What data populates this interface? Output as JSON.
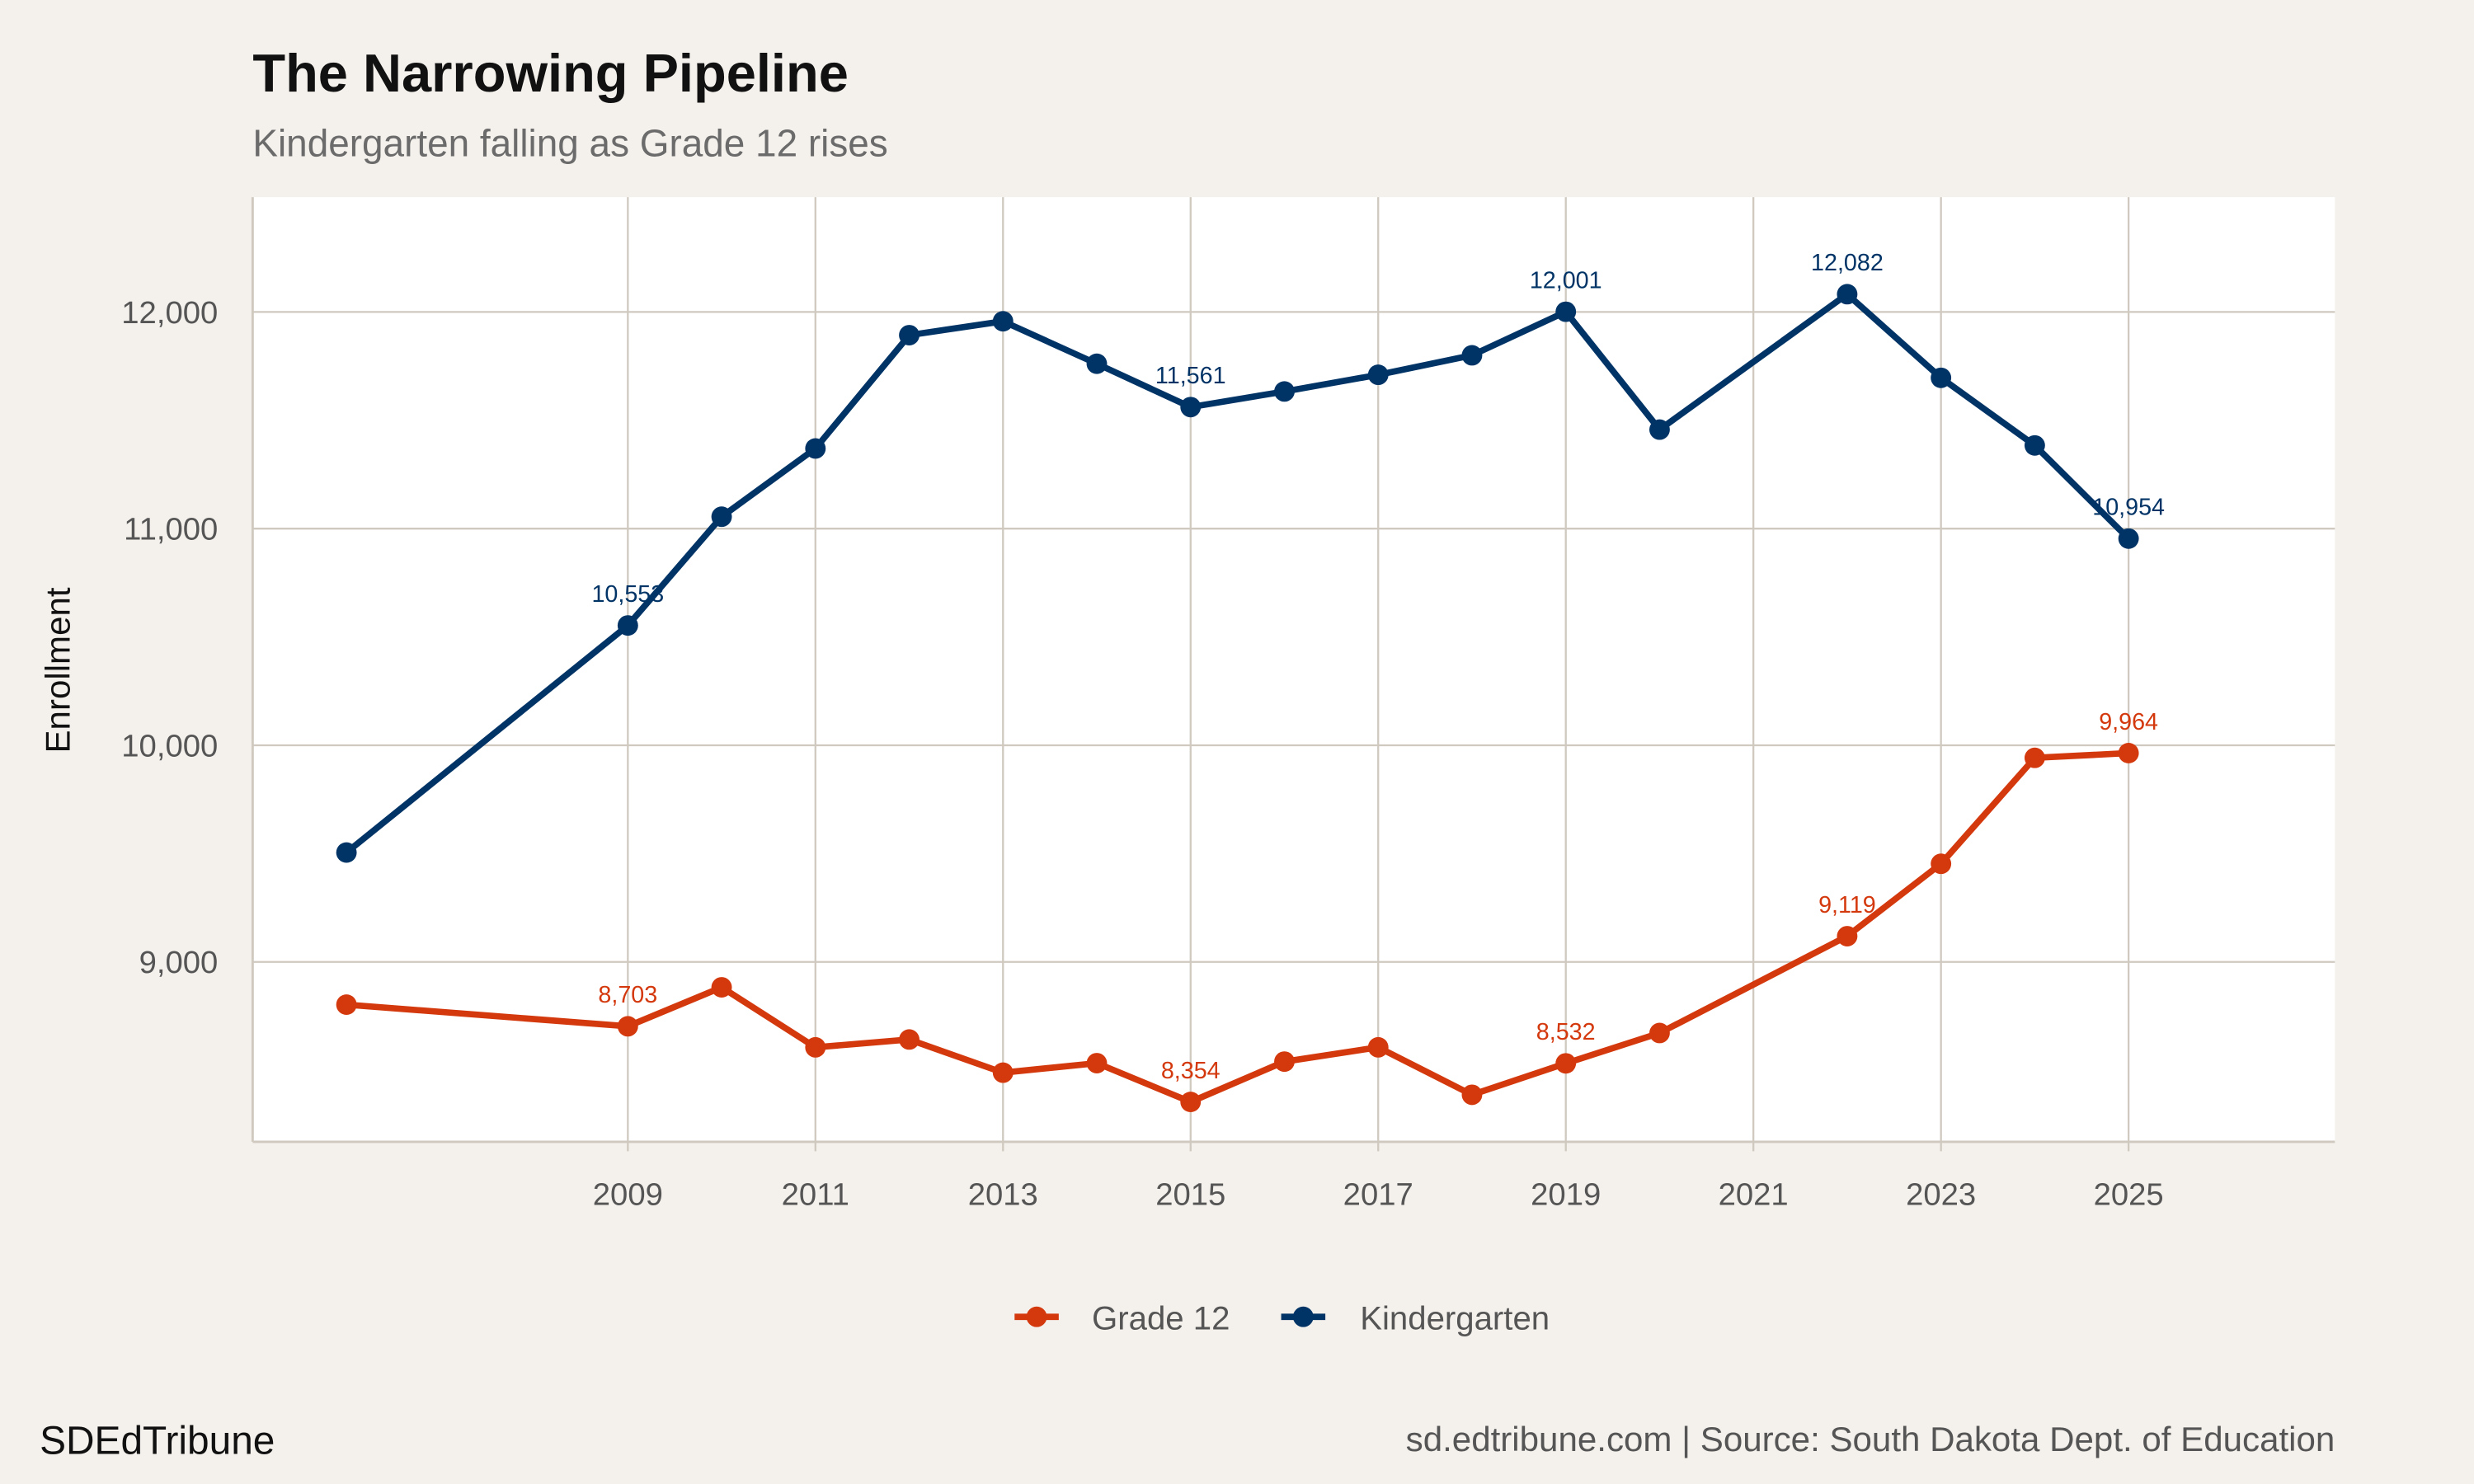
{
  "chart_data": {
    "type": "line",
    "title": "The Narrowing Pipeline",
    "subtitle": "Kindergarten falling as Grade 12 rises",
    "xlabel": "",
    "ylabel": "Enrollment",
    "xlim": [
      2005,
      2027.2
    ],
    "ylim": [
      8170,
      12530
    ],
    "x_ticks": [
      2009,
      2011,
      2013,
      2015,
      2017,
      2019,
      2021,
      2023,
      2025
    ],
    "y_ticks": [
      9000,
      10000,
      11000,
      12000
    ],
    "y_tick_labels": [
      "9,000",
      "10,000",
      "11,000",
      "12,000"
    ],
    "grid": true,
    "legend_position": "bottom",
    "x": [
      2006,
      2009,
      2010,
      2011,
      2012,
      2013,
      2014,
      2015,
      2016,
      2017,
      2018,
      2019,
      2020,
      2022,
      2023,
      2024,
      2025
    ],
    "series": [
      {
        "name": "Grade 12",
        "color": "#D4380D",
        "values": [
          8803,
          8703,
          8883,
          8606,
          8642,
          8489,
          8533,
          8354,
          8540,
          8606,
          8387,
          8532,
          8672,
          9119,
          9453,
          9942,
          9964
        ],
        "labels": [
          {
            "x": 2009,
            "text": "8,703"
          },
          {
            "x": 2015,
            "text": "8,354"
          },
          {
            "x": 2019,
            "text": "8,532"
          },
          {
            "x": 2022,
            "text": "9,119"
          },
          {
            "x": 2025,
            "text": "9,964"
          }
        ]
      },
      {
        "name": "Kindergarten",
        "color": "#003366",
        "values": [
          9505,
          10553,
          11055,
          11370,
          11893,
          11957,
          11761,
          11561,
          11633,
          11710,
          11800,
          12001,
          11457,
          12082,
          11696,
          11384,
          10954
        ],
        "labels": [
          {
            "x": 2009,
            "text": "10,553"
          },
          {
            "x": 2015,
            "text": "11,561"
          },
          {
            "x": 2019,
            "text": "12,001"
          },
          {
            "x": 2022,
            "text": "12,082"
          },
          {
            "x": 2025,
            "text": "10,954"
          }
        ]
      }
    ]
  },
  "footer": {
    "brand": "SDEdTribune",
    "source": "sd.edtribune.com | Source: South Dakota Dept. of Education"
  },
  "colors": {
    "background": "#F4F1EC",
    "panel": "#FFFFFF",
    "grid": "#CFC9BF"
  }
}
